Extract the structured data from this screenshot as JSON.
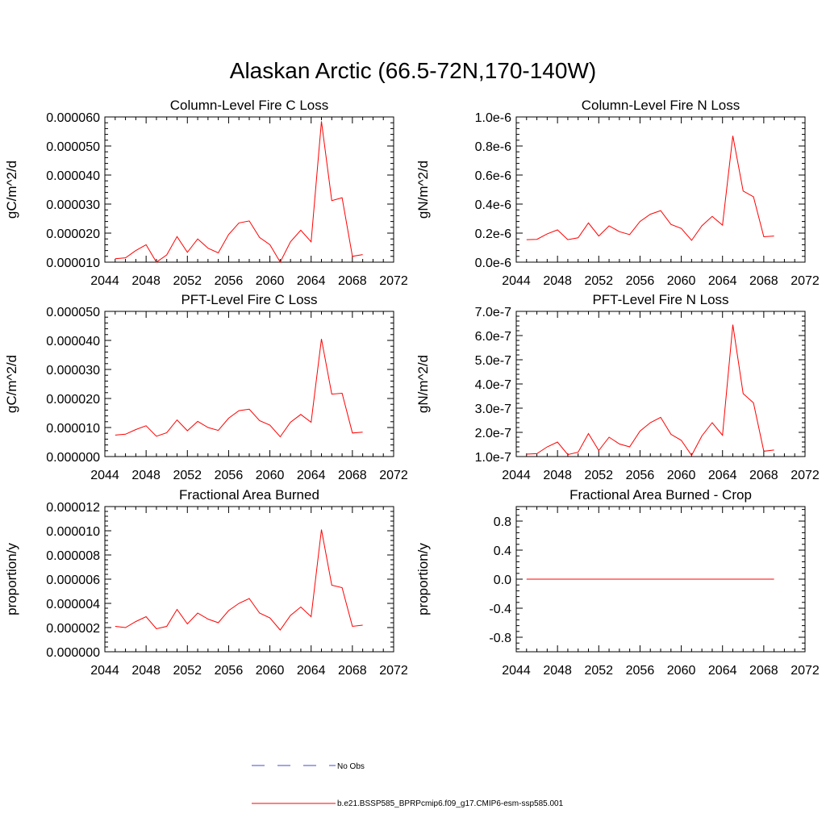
{
  "title": "Alaskan Arctic (66.5-72N,170-140W)",
  "legend": {
    "obs_label": "No Obs",
    "obs_color": "#4a4ad0",
    "model_label": "b.e21.BSSP585_BPRPcmip6.f09_g17.CMIP6-esm-ssp585.001",
    "model_color": "#ff0000"
  },
  "chart_data": [
    {
      "type": "line",
      "title": "Column-Level Fire C Loss",
      "ylabel": "gC/m^2/d",
      "xlim": [
        2044,
        2072
      ],
      "ylim": [
        1e-05,
        6e-05
      ],
      "xticks": [
        2044,
        2048,
        2052,
        2056,
        2060,
        2064,
        2068,
        2072
      ],
      "xtick_labels": [
        "2044",
        "2048",
        "2052",
        "2056",
        "2060",
        "2064",
        "2068",
        "2072"
      ],
      "yticks": [
        1e-05,
        2e-05,
        3e-05,
        4e-05,
        5e-05,
        6e-05
      ],
      "ytick_labels": [
        "0.000010",
        "0.000020",
        "0.000030",
        "0.000040",
        "0.000050",
        "0.000060"
      ],
      "x": [
        2045,
        2046,
        2047,
        2048,
        2049,
        2050,
        2051,
        2052,
        2053,
        2054,
        2055,
        2056,
        2057,
        2058,
        2059,
        2060,
        2061,
        2062,
        2063,
        2064,
        2065,
        2066,
        2067,
        2068,
        2069
      ],
      "values": [
        1.12e-05,
        1.15e-05,
        1.4e-05,
        1.6e-05,
        1e-05,
        1.25e-05,
        1.88e-05,
        1.34e-05,
        1.8e-05,
        1.48e-05,
        1.32e-05,
        1.95e-05,
        2.35e-05,
        2.42e-05,
        1.85e-05,
        1.6e-05,
        1e-05,
        1.7e-05,
        2.1e-05,
        1.7e-05,
        5.85e-05,
        3.12e-05,
        3.22e-05,
        1.2e-05,
        1.26e-05
      ]
    },
    {
      "type": "line",
      "title": "Column-Level Fire N Loss",
      "ylabel": "gN/m^2/d",
      "xlim": [
        2044,
        2072
      ],
      "ylim": [
        0,
        1e-06
      ],
      "xticks": [
        2044,
        2048,
        2052,
        2056,
        2060,
        2064,
        2068,
        2072
      ],
      "xtick_labels": [
        "2044",
        "2048",
        "2052",
        "2056",
        "2060",
        "2064",
        "2068",
        "2072"
      ],
      "yticks": [
        0,
        2e-07,
        4e-07,
        6e-07,
        8e-07,
        1e-06
      ],
      "ytick_labels": [
        "0.0e-6",
        "0.2e-6",
        "0.4e-6",
        "0.6e-6",
        "0.8e-6",
        "1.0e-6"
      ],
      "x": [
        2045,
        2046,
        2047,
        2048,
        2049,
        2050,
        2051,
        2052,
        2053,
        2054,
        2055,
        2056,
        2057,
        2058,
        2059,
        2060,
        2061,
        2062,
        2063,
        2064,
        2065,
        2066,
        2067,
        2068,
        2069
      ],
      "values": [
        1.55e-07,
        1.57e-07,
        1.95e-07,
        2.22e-07,
        1.55e-07,
        1.68e-07,
        2.7e-07,
        1.8e-07,
        2.5e-07,
        2.1e-07,
        1.9e-07,
        2.8e-07,
        3.3e-07,
        3.55e-07,
        2.6e-07,
        2.32e-07,
        1.5e-07,
        2.5e-07,
        3.15e-07,
        2.55e-07,
        8.7e-07,
        4.9e-07,
        4.5e-07,
        1.75e-07,
        1.8e-07
      ]
    },
    {
      "type": "line",
      "title": "PFT-Level Fire C Loss",
      "ylabel": "gC/m^2/d",
      "xlim": [
        2044,
        2072
      ],
      "ylim": [
        0,
        5e-05
      ],
      "xticks": [
        2044,
        2048,
        2052,
        2056,
        2060,
        2064,
        2068,
        2072
      ],
      "xtick_labels": [
        "2044",
        "2048",
        "2052",
        "2056",
        "2060",
        "2064",
        "2068",
        "2072"
      ],
      "yticks": [
        0,
        1e-05,
        2e-05,
        3e-05,
        4e-05,
        5e-05
      ],
      "ytick_labels": [
        "0.000000",
        "0.000010",
        "0.000020",
        "0.000030",
        "0.000040",
        "0.000050"
      ],
      "x": [
        2045,
        2046,
        2047,
        2048,
        2049,
        2050,
        2051,
        2052,
        2053,
        2054,
        2055,
        2056,
        2057,
        2058,
        2059,
        2060,
        2061,
        2062,
        2063,
        2064,
        2065,
        2066,
        2067,
        2068,
        2069
      ],
      "values": [
        7.4e-06,
        7.7e-06,
        9.3e-06,
        1.06e-05,
        7e-06,
        8.2e-06,
        1.26e-05,
        8.9e-06,
        1.21e-05,
        1e-05,
        9e-06,
        1.32e-05,
        1.58e-05,
        1.63e-05,
        1.24e-05,
        1.08e-05,
        6.8e-06,
        1.18e-05,
        1.45e-05,
        1.18e-05,
        4.05e-05,
        2.15e-05,
        2.18e-05,
        8.1e-06,
        8.4e-06
      ]
    },
    {
      "type": "line",
      "title": "PFT-Level Fire N Loss",
      "ylabel": "gN/m^2/d",
      "xlim": [
        2044,
        2072
      ],
      "ylim": [
        1e-07,
        7e-07
      ],
      "xticks": [
        2044,
        2048,
        2052,
        2056,
        2060,
        2064,
        2068,
        2072
      ],
      "xtick_labels": [
        "2044",
        "2048",
        "2052",
        "2056",
        "2060",
        "2064",
        "2068",
        "2072"
      ],
      "yticks": [
        1e-07,
        2e-07,
        3e-07,
        4e-07,
        5e-07,
        6e-07,
        7e-07
      ],
      "ytick_labels": [
        "1.0e-7",
        "2.0e-7",
        "3.0e-7",
        "4.0e-7",
        "5.0e-7",
        "6.0e-7",
        "7.0e-7"
      ],
      "x": [
        2045,
        2046,
        2047,
        2048,
        2049,
        2050,
        2051,
        2052,
        2053,
        2054,
        2055,
        2056,
        2057,
        2058,
        2059,
        2060,
        2061,
        2062,
        2063,
        2064,
        2065,
        2066,
        2067,
        2068,
        2069
      ],
      "values": [
        1.1e-07,
        1.12e-07,
        1.4e-07,
        1.6e-07,
        1.08e-07,
        1.18e-07,
        1.95e-07,
        1.25e-07,
        1.8e-07,
        1.52e-07,
        1.4e-07,
        2.05e-07,
        2.4e-07,
        2.62e-07,
        1.92e-07,
        1.67e-07,
        1.05e-07,
        1.85e-07,
        2.4e-07,
        1.88e-07,
        6.45e-07,
        3.6e-07,
        3.22e-07,
        1.22e-07,
        1.27e-07
      ]
    },
    {
      "type": "line",
      "title": "Fractional Area Burned",
      "ylabel": "proportion/y",
      "xlim": [
        2044,
        2072
      ],
      "ylim": [
        0,
        1.2e-05
      ],
      "xticks": [
        2044,
        2048,
        2052,
        2056,
        2060,
        2064,
        2068,
        2072
      ],
      "xtick_labels": [
        "2044",
        "2048",
        "2052",
        "2056",
        "2060",
        "2064",
        "2068",
        "2072"
      ],
      "yticks": [
        0,
        2e-06,
        4e-06,
        6e-06,
        8e-06,
        1e-05,
        1.2e-05
      ],
      "ytick_labels": [
        "0.000000",
        "0.000002",
        "0.000004",
        "0.000006",
        "0.000008",
        "0.000010",
        "0.000012"
      ],
      "x": [
        2045,
        2046,
        2047,
        2048,
        2049,
        2050,
        2051,
        2052,
        2053,
        2054,
        2055,
        2056,
        2057,
        2058,
        2059,
        2060,
        2061,
        2062,
        2063,
        2064,
        2065,
        2066,
        2067,
        2068,
        2069
      ],
      "values": [
        2.1e-06,
        2e-06,
        2.5e-06,
        2.9e-06,
        1.9e-06,
        2.1e-06,
        3.5e-06,
        2.3e-06,
        3.2e-06,
        2.7e-06,
        2.4e-06,
        3.4e-06,
        4e-06,
        4.4e-06,
        3.2e-06,
        2.8e-06,
        1.8e-06,
        3e-06,
        3.7e-06,
        2.9e-06,
        1.01e-05,
        5.5e-06,
        5.3e-06,
        2.1e-06,
        2.2e-06
      ]
    },
    {
      "type": "line",
      "title": "Fractional Area Burned - Crop",
      "ylabel": "proportion/y",
      "xlim": [
        2044,
        2072
      ],
      "ylim": [
        -1,
        1
      ],
      "xticks": [
        2044,
        2048,
        2052,
        2056,
        2060,
        2064,
        2068,
        2072
      ],
      "xtick_labels": [
        "2044",
        "2048",
        "2052",
        "2056",
        "2060",
        "2064",
        "2068",
        "2072"
      ],
      "yticks": [
        -0.8,
        -0.4,
        0,
        0.4,
        0.8
      ],
      "ytick_labels": [
        "-0.8",
        "-0.4",
        "0.0",
        "0.4",
        "0.8"
      ],
      "x": [
        2045,
        2046,
        2047,
        2048,
        2049,
        2050,
        2051,
        2052,
        2053,
        2054,
        2055,
        2056,
        2057,
        2058,
        2059,
        2060,
        2061,
        2062,
        2063,
        2064,
        2065,
        2066,
        2067,
        2068,
        2069
      ],
      "values": [
        0,
        0,
        0,
        0,
        0,
        0,
        0,
        0,
        0,
        0,
        0,
        0,
        0,
        0,
        0,
        0,
        0,
        0,
        0,
        0,
        0,
        0,
        0,
        0,
        0
      ]
    }
  ]
}
